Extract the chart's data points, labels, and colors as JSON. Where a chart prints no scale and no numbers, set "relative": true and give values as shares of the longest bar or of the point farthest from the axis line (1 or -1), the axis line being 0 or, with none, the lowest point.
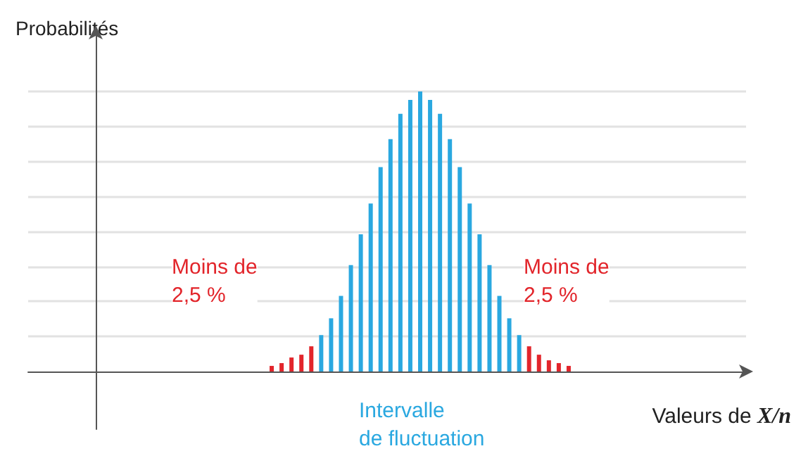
{
  "chart_data": {
    "type": "bar",
    "relative": true,
    "title": "Probabilités",
    "xlabel": "Valeurs de X/n",
    "annotations": [
      "Moins de\n2,5 %",
      "Moins de\n2,5 %",
      "Intervalle\nde fluctuation"
    ],
    "categories": [
      null,
      null,
      null,
      null,
      null,
      null,
      null,
      null,
      null,
      null,
      null,
      null,
      null,
      null,
      null,
      null,
      null,
      null,
      null,
      null,
      null,
      null,
      null,
      null,
      null,
      null,
      null,
      null,
      null,
      null,
      null
    ],
    "values": [
      0.02,
      0.03,
      0.05,
      0.06,
      0.09,
      0.13,
      0.19,
      0.27,
      0.38,
      0.49,
      0.6,
      0.73,
      0.83,
      0.92,
      0.97,
      1,
      0.97,
      0.92,
      0.83,
      0.73,
      0.6,
      0.49,
      0.38,
      0.27,
      0.19,
      0.13,
      0.09,
      0.06,
      0.04,
      0.03,
      0.02
    ],
    "colors": [
      "#e2252b",
      "#e2252b",
      "#e2252b",
      "#e2252b",
      "#e2252b",
      "#2aa8e0",
      "#2aa8e0",
      "#2aa8e0",
      "#2aa8e0",
      "#2aa8e0",
      "#2aa8e0",
      "#2aa8e0",
      "#2aa8e0",
      "#2aa8e0",
      "#2aa8e0",
      "#2aa8e0",
      "#2aa8e0",
      "#2aa8e0",
      "#2aa8e0",
      "#2aa8e0",
      "#2aa8e0",
      "#2aa8e0",
      "#2aa8e0",
      "#2aa8e0",
      "#2aa8e0",
      "#2aa8e0",
      "#e2252b",
      "#e2252b",
      "#e2252b",
      "#e2252b",
      "#e2252b"
    ],
    "grid": "y"
  }
}
